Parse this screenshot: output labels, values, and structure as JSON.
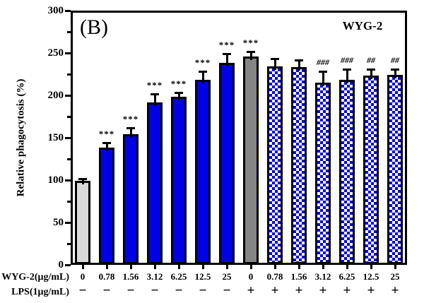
{
  "figure": {
    "panel_label": "(B)"
  },
  "chart_data": {
    "type": "bar",
    "title": "WYG-2",
    "panel_label": "(B)",
    "ylabel": "Relative phagocytosis (%)",
    "ylim": [
      0,
      300
    ],
    "yticks": [
      0,
      50,
      100,
      150,
      200,
      250,
      300
    ],
    "yticks_minor": [
      25,
      75,
      125,
      175,
      225,
      275
    ],
    "grid": false,
    "legend": "none",
    "x_row_labels": [
      "WYG-2(μg/mL)",
      "LPS(1μg/mL)"
    ],
    "colors": {
      "blue": "#0101e6",
      "lightgray": "#d9d9d9",
      "gray": "#858585",
      "pattern": "blue-white-checker",
      "outline": "#000000"
    },
    "bars": [
      {
        "dose": "0",
        "lps": "−",
        "value": 99,
        "error": 3,
        "sig": "",
        "fill": "lightgray"
      },
      {
        "dose": "0.78",
        "lps": "−",
        "value": 138,
        "error": 6,
        "sig": "***",
        "fill": "blue"
      },
      {
        "dose": "1.56",
        "lps": "−",
        "value": 154,
        "error": 8,
        "sig": "***",
        "fill": "blue"
      },
      {
        "dose": "3.12",
        "lps": "−",
        "value": 192,
        "error": 10,
        "sig": "***",
        "fill": "blue"
      },
      {
        "dose": "6.25",
        "lps": "−",
        "value": 198,
        "error": 5,
        "sig": "***",
        "fill": "blue"
      },
      {
        "dose": "12.5",
        "lps": "−",
        "value": 218,
        "error": 10,
        "sig": "***",
        "fill": "blue"
      },
      {
        "dose": "25",
        "lps": "−",
        "value": 238,
        "error": 11,
        "sig": "***",
        "fill": "blue"
      },
      {
        "dose": "0",
        "lps": "+",
        "value": 246,
        "error": 6,
        "sig": "***",
        "fill": "gray"
      },
      {
        "dose": "0.78",
        "lps": "+",
        "value": 234,
        "error": 9,
        "sig": "",
        "fill": "pattern"
      },
      {
        "dose": "1.56",
        "lps": "+",
        "value": 233,
        "error": 9,
        "sig": "",
        "fill": "pattern"
      },
      {
        "dose": "3.12",
        "lps": "+",
        "value": 215,
        "error": 13,
        "sig": "###",
        "fill": "pattern"
      },
      {
        "dose": "6.25",
        "lps": "+",
        "value": 218,
        "error": 13,
        "sig": "###",
        "fill": "pattern"
      },
      {
        "dose": "12.5",
        "lps": "+",
        "value": 223,
        "error": 8,
        "sig": "##",
        "fill": "pattern"
      },
      {
        "dose": "25",
        "lps": "+",
        "value": 224,
        "error": 7,
        "sig": "##",
        "fill": "pattern"
      }
    ]
  }
}
